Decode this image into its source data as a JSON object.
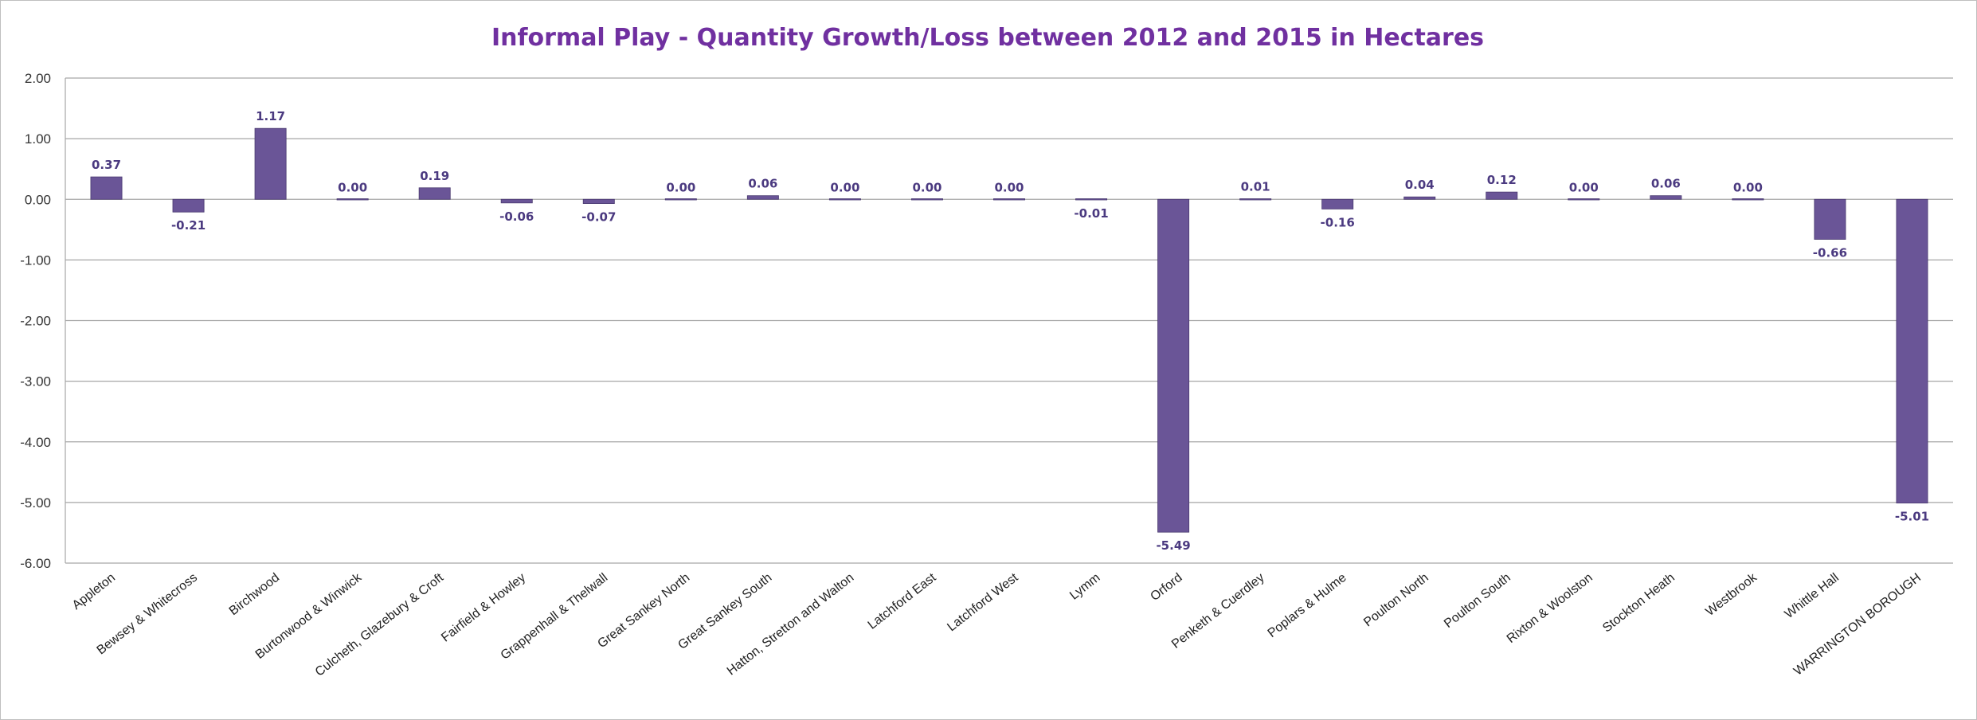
{
  "chart_data": {
    "type": "bar",
    "title": "Informal Play - Quantity Growth/Loss between 2012 and 2015 in Hectares",
    "xlabel": "",
    "ylabel": "",
    "ylim": [
      -6,
      2
    ],
    "yticks": [
      "2.00",
      "1.00",
      "0.00",
      "-1.00",
      "-2.00",
      "-3.00",
      "-4.00",
      "-5.00",
      "-6.00"
    ],
    "grid": true,
    "legend": "none",
    "bar_color": "#6a5597",
    "categories": [
      "Appleton",
      "Bewsey & Whitecross",
      "Birchwood",
      "Burtonwood & Winwick",
      "Culcheth, Glazebury & Croft",
      "Fairfield & Howley",
      "Grappenhall & Thelwall",
      "Great Sankey North",
      "Great Sankey South",
      "Hatton, Stretton and Walton",
      "Latchford East",
      "Latchford West",
      "Lymm",
      "Orford",
      "Penketh & Cuerdley",
      "Poplars & Hulme",
      "Poulton North",
      "Poulton South",
      "Rixton & Woolston",
      "Stockton Heath",
      "Westbrook",
      "Whittle Hall",
      "WARRINGTON BOROUGH"
    ],
    "values": [
      0.37,
      -0.21,
      1.17,
      0.0,
      0.19,
      -0.06,
      -0.07,
      0.0,
      0.06,
      0.0,
      0.0,
      0.0,
      -0.01,
      -5.49,
      0.01,
      -0.16,
      0.04,
      0.12,
      0.0,
      0.06,
      0.0,
      -0.66,
      -5.01
    ],
    "data_labels": [
      "0.37",
      "-0.21",
      "1.17",
      "0.00",
      "0.19",
      "-0.06",
      "-0.07",
      "0.00",
      "0.06",
      "0.00",
      "0.00",
      "0.00",
      "-0.01",
      "-5.49",
      "0.01",
      "-0.16",
      "0.04",
      "0.12",
      "0.00",
      "0.06",
      "0.00",
      "-0.66",
      "-5.01"
    ]
  }
}
